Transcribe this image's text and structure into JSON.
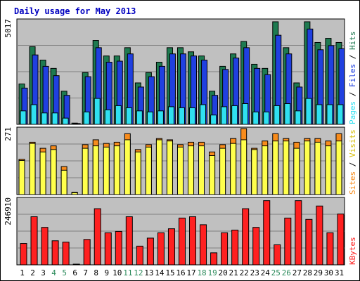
{
  "chart_data": {
    "type": "bar",
    "title": "Daily usage for May 2013",
    "categories": [
      "1",
      "2",
      "3",
      "4",
      "5",
      "6",
      "7",
      "8",
      "9",
      "10",
      "11",
      "12",
      "13",
      "14",
      "15",
      "16",
      "17",
      "18",
      "19",
      "20",
      "21",
      "22",
      "23",
      "24",
      "25",
      "26",
      "27",
      "28",
      "29",
      "30",
      "31"
    ],
    "weekend_days": [
      "4",
      "5",
      "11",
      "12",
      "18",
      "19",
      "25",
      "26"
    ],
    "panels": [
      {
        "name": "traffic",
        "max_label": "5017",
        "ylim": [
          0,
          5017
        ],
        "right_labels": [
          "Pages",
          "Files",
          "Hits"
        ],
        "series": [
          {
            "name": "Hits",
            "color": "#1e7a50",
            "values": [
              1950,
              3750,
              3100,
              2700,
              1600,
              60,
              2500,
              4050,
              3300,
              3300,
              3700,
              2000,
              2500,
              3000,
              3700,
              3700,
              3500,
              3300,
              1600,
              2800,
              3400,
              4000,
              2900,
              2700,
              4950,
              3700,
              2000,
              4950,
              3950,
              4150,
              3950
            ]
          },
          {
            "name": "Files",
            "color": "#2040e0",
            "values": [
              1750,
              3350,
              2800,
              2350,
              1400,
              40,
              2300,
              3700,
              3000,
              3050,
              3400,
              1800,
              2300,
              2800,
              3400,
              3400,
              3300,
              3100,
              1400,
              2650,
              3200,
              3700,
              2700,
              2400,
              4300,
              3400,
              1800,
              4600,
              3600,
              3800,
              3650
            ]
          },
          {
            "name": "Pages",
            "color": "#30e0f0",
            "values": [
              650,
              950,
              550,
              550,
              300,
              20,
              600,
              1250,
              700,
              900,
              800,
              650,
              600,
              650,
              850,
              800,
              800,
              950,
              450,
              850,
              900,
              1000,
              600,
              600,
              900,
              1000,
              650,
              1250,
              950,
              950,
              950
            ]
          }
        ]
      },
      {
        "name": "visitors",
        "max_label": "271",
        "ylim": [
          0,
          271
        ],
        "right_labels": [
          "Sites",
          "Visits"
        ],
        "series": [
          {
            "name": "Visits",
            "color": "#f88c1c",
            "values": [
              145,
              215,
              190,
              200,
              115,
              10,
              205,
              225,
              210,
              215,
              250,
              185,
              205,
              230,
              225,
              205,
              215,
              215,
              175,
              205,
              230,
              271,
              190,
              220,
              250,
              230,
              215,
              230,
              230,
              220,
              250
            ]
          },
          {
            "name": "Sites",
            "color": "#ffff4c",
            "values": [
              140,
              210,
              175,
              185,
              100,
              8,
              190,
              200,
              195,
              200,
              225,
              175,
              195,
              225,
              220,
              195,
              200,
              200,
              160,
              190,
              210,
              225,
              185,
              200,
              220,
              220,
              190,
              220,
              215,
              200,
              220
            ]
          }
        ]
      },
      {
        "name": "kbytes",
        "max_label": "246910",
        "ylim": [
          0,
          246910
        ],
        "right_labels": [
          "KBytes"
        ],
        "series": [
          {
            "name": "KBytes",
            "color": "#ff2020",
            "values": [
              80000,
              180000,
              140000,
              90000,
              85000,
              2000,
              95000,
              210000,
              120000,
              125000,
              180000,
              70000,
              100000,
              120000,
              135000,
              175000,
              180000,
              150000,
              45000,
              120000,
              130000,
              210000,
              140000,
              240000,
              75000,
              175000,
              240000,
              170000,
              220000,
              120000,
              190000
            ]
          }
        ]
      }
    ]
  }
}
